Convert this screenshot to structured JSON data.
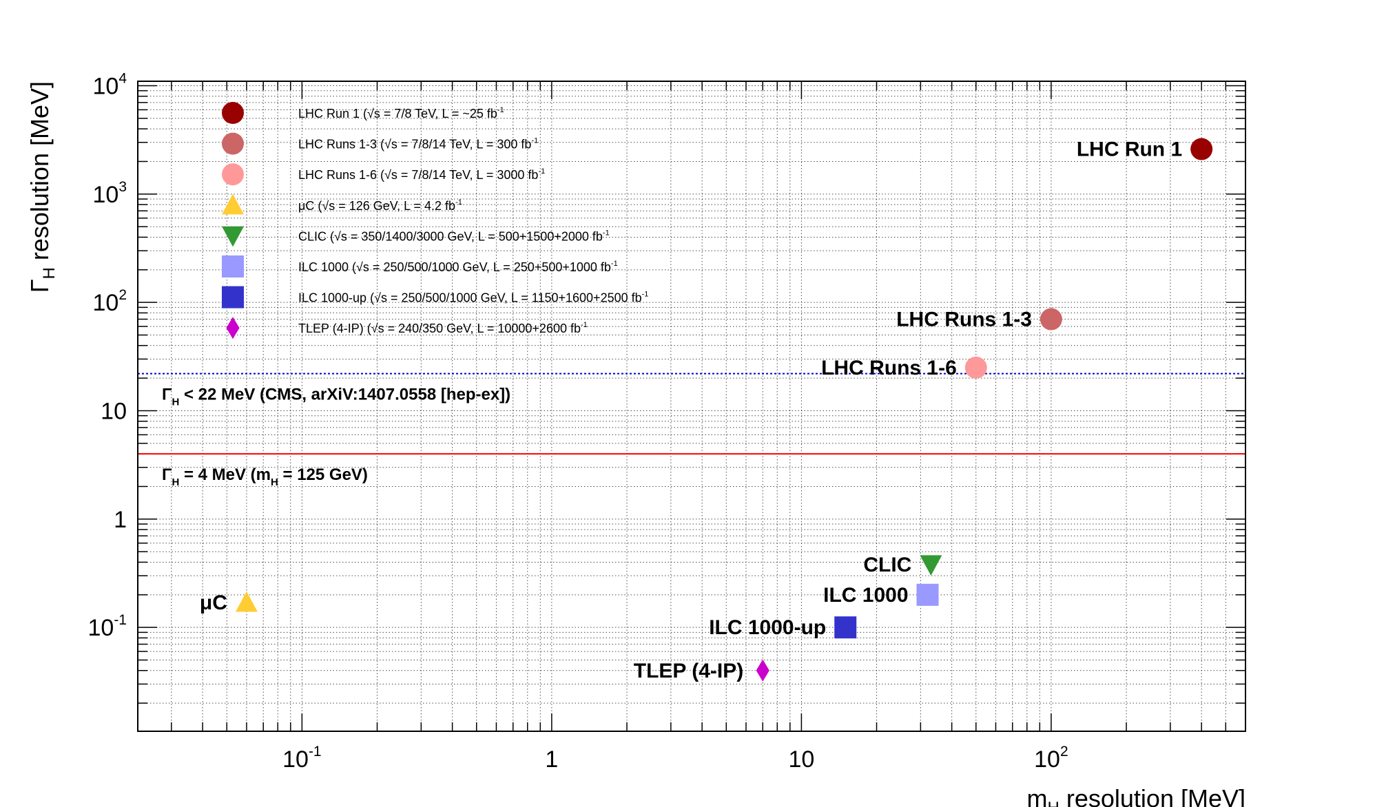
{
  "chart_data": {
    "type": "scatter",
    "xlabel": "m",
    "xlabel_sub": "H",
    "xlabel_rest": " resolution [MeV]",
    "ylabel": "Γ",
    "ylabel_sub": "H",
    "ylabel_rest": " resolution [MeV]",
    "xscale": "log",
    "yscale": "log",
    "xlim": [
      0.022,
      600
    ],
    "ylim": [
      0.011,
      11000
    ],
    "grid": true,
    "legend_position": "top-left",
    "x_ticks": [
      {
        "value": 0.1,
        "base": "10",
        "exp": "-1"
      },
      {
        "value": 1,
        "base": "1",
        "exp": ""
      },
      {
        "value": 10,
        "base": "10",
        "exp": ""
      },
      {
        "value": 100,
        "base": "10",
        "exp": "2"
      }
    ],
    "y_ticks": [
      {
        "value": 0.1,
        "base": "10",
        "exp": "-1"
      },
      {
        "value": 1,
        "base": "1",
        "exp": ""
      },
      {
        "value": 10,
        "base": "10",
        "exp": ""
      },
      {
        "value": 100,
        "base": "10",
        "exp": "2"
      },
      {
        "value": 1000,
        "base": "10",
        "exp": "3"
      },
      {
        "value": 10000,
        "base": "10",
        "exp": "4"
      }
    ],
    "series": [
      {
        "legend": "LHC Run 1 (√s = 7/8 TeV, L = ~25 fb",
        "legend_sup": "-1",
        "label": "LHC Run 1",
        "marker": "circle",
        "color": "#990000",
        "x": 400,
        "y": 2600
      },
      {
        "legend": "LHC Runs 1-3 (√s = 7/8/14 TeV, L = 300 fb",
        "legend_sup": "-1",
        "label": "LHC Runs 1-3",
        "marker": "circle",
        "color": "#cc6666",
        "x": 100,
        "y": 70
      },
      {
        "legend": "LHC Runs 1-6 (√s = 7/8/14 TeV, L = 3000 fb",
        "legend_sup": "-1",
        "label": "LHC Runs 1-6",
        "marker": "circle",
        "color": "#ff9999",
        "x": 50,
        "y": 25
      },
      {
        "legend": "μC (√s = 126 GeV, L = 4.2 fb",
        "legend_sup": "-1",
        "label": "μC",
        "marker": "triangle-up",
        "color": "#ffcc33",
        "x": 0.06,
        "y": 0.17
      },
      {
        "legend": "CLIC (√s = 350/1400/3000 GeV, L = 500+1500+2000 fb",
        "legend_sup": "-1",
        "label": "CLIC",
        "marker": "triangle-down",
        "color": "#339933",
        "x": 33,
        "y": 0.38
      },
      {
        "legend": "ILC 1000 (√s = 250/500/1000 GeV, L = 250+500+1000 fb",
        "legend_sup": "-1",
        "label": "ILC 1000",
        "marker": "square",
        "color": "#9999ff",
        "x": 32,
        "y": 0.2
      },
      {
        "legend": "ILC 1000-up (√s = 250/500/1000 GeV, L = 1150+1600+2500 fb",
        "legend_sup": "-1",
        "label": "ILC 1000-up",
        "marker": "square",
        "color": "#3333cc",
        "x": 15,
        "y": 0.1
      },
      {
        "legend": "TLEP (4-IP) (√s = 240/350 GeV, L = 10000+2600 fb",
        "legend_sup": "-1",
        "label": "TLEP (4-IP)",
        "marker": "diamond",
        "color": "#cc00cc",
        "x": 7,
        "y": 0.04
      }
    ],
    "reference_lines": [
      {
        "y": 22,
        "color": "#0000cc",
        "style": "dotted",
        "label_main": "Γ",
        "label_sub": "H",
        "label_rest": " < 22 MeV (CMS, arXiV:1407.0558 [hep-ex])"
      },
      {
        "y": 4,
        "color": "#ff0000",
        "style": "solid",
        "label_main": "Γ",
        "label_sub": "H",
        "label_rest": " = 4 MeV (m",
        "label_sub2": "H",
        "label_rest2": " = 125 GeV)"
      }
    ]
  }
}
